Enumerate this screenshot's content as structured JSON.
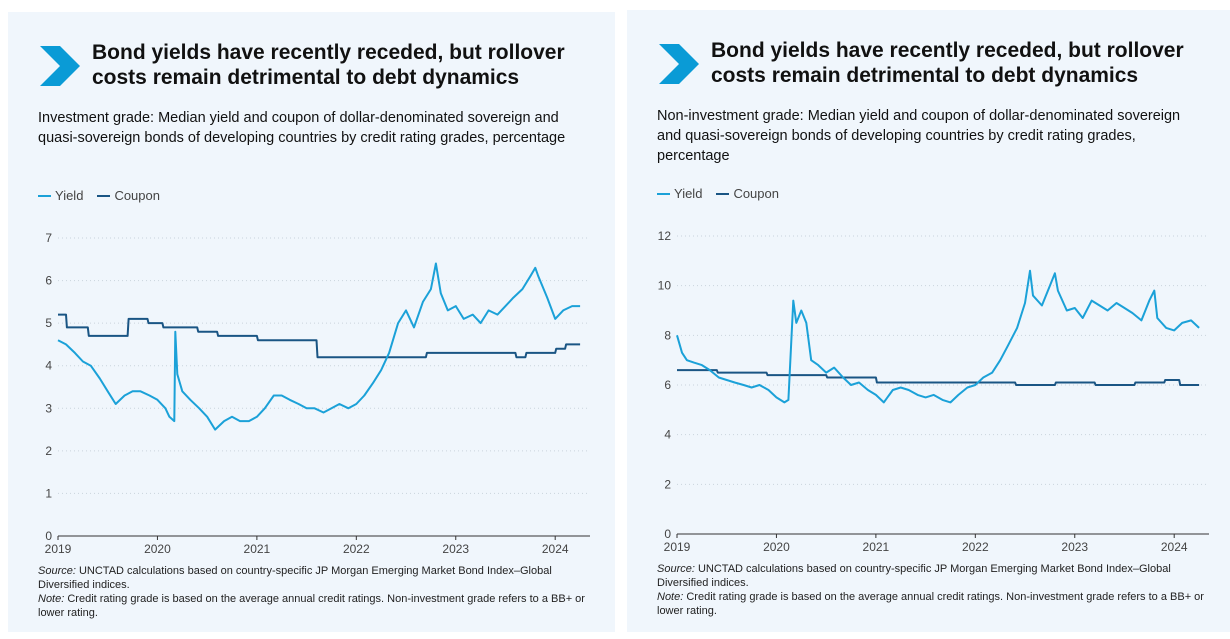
{
  "panels": [
    {
      "title": "Bond yields have recently receded, but rollover costs remain detrimental to debt dynamics",
      "subtitle": "Investment grade: Median yield and coupon of dollar-denominated sovereign and quasi-sovereign bonds of developing countries by credit rating grades, percentage",
      "legend": [
        "Yield",
        "Coupon"
      ],
      "source_label": "Source:",
      "source_text": " UNCTAD calculations based on country-specific JP Morgan Emerging Market Bond Index–Global Diversified indices.",
      "note_label": "Note:",
      "note_text": " Credit rating grade is based on the average annual credit ratings. Non-investment grade refers to a BB+ or lower rating."
    },
    {
      "title": "Bond yields have recently receded, but rollover costs remain detrimental to debt dynamics",
      "subtitle": "Non-investment grade: Median yield and coupon of dollar-denominated sovereign and quasi-sovereign bonds of developing countries by credit rating grades, percentage",
      "legend": [
        "Yield",
        "Coupon"
      ],
      "source_label": "Source:",
      "source_text": " UNCTAD calculations based on country-specific JP Morgan Emerging Market Bond Index–Global Diversified indices.",
      "note_label": "Note:",
      "note_text": " Credit rating grade is based on the average annual credit ratings. Non-investment grade refers to a BB+ or lower rating."
    }
  ],
  "colors": {
    "yield": "#1ba1d8",
    "coupon": "#1a5584",
    "accent": "#0a9bd6",
    "panel_bg": "#f0f6fc"
  },
  "chart_data": [
    {
      "type": "line",
      "title": "",
      "xlabel": "",
      "ylabel": "",
      "xlim": [
        2019.0,
        2024.35
      ],
      "ylim": [
        0,
        7
      ],
      "yticks": [
        0,
        1,
        2,
        3,
        4,
        5,
        6,
        7
      ],
      "xticks": [
        "2019",
        "2020",
        "2021",
        "2022",
        "2023",
        "2024"
      ],
      "grid": "horizontal",
      "legend_position": "top-left",
      "series": [
        {
          "name": "Yield",
          "x": [
            2019.0,
            2019.08,
            2019.17,
            2019.25,
            2019.33,
            2019.42,
            2019.5,
            2019.58,
            2019.67,
            2019.75,
            2019.83,
            2019.92,
            2020.0,
            2020.08,
            2020.12,
            2020.17,
            2020.18,
            2020.2,
            2020.25,
            2020.33,
            2020.42,
            2020.5,
            2020.58,
            2020.67,
            2020.75,
            2020.83,
            2020.92,
            2021.0,
            2021.08,
            2021.17,
            2021.25,
            2021.33,
            2021.42,
            2021.5,
            2021.58,
            2021.67,
            2021.75,
            2021.83,
            2021.92,
            2022.0,
            2022.08,
            2022.17,
            2022.25,
            2022.33,
            2022.42,
            2022.5,
            2022.58,
            2022.67,
            2022.75,
            2022.8,
            2022.85,
            2022.92,
            2023.0,
            2023.08,
            2023.17,
            2023.25,
            2023.33,
            2023.42,
            2023.5,
            2023.58,
            2023.67,
            2023.75,
            2023.8,
            2023.83,
            2023.92,
            2024.0,
            2024.08,
            2024.17,
            2024.25
          ],
          "values": [
            4.6,
            4.5,
            4.3,
            4.1,
            4.0,
            3.7,
            3.4,
            3.1,
            3.3,
            3.4,
            3.4,
            3.3,
            3.2,
            3.0,
            2.8,
            2.7,
            4.8,
            3.8,
            3.4,
            3.2,
            3.0,
            2.8,
            2.5,
            2.7,
            2.8,
            2.7,
            2.7,
            2.8,
            3.0,
            3.3,
            3.3,
            3.2,
            3.1,
            3.0,
            3.0,
            2.9,
            3.0,
            3.1,
            3.0,
            3.1,
            3.3,
            3.6,
            3.9,
            4.3,
            5.0,
            5.3,
            4.9,
            5.5,
            5.8,
            6.4,
            5.7,
            5.3,
            5.4,
            5.1,
            5.2,
            5.0,
            5.3,
            5.2,
            5.4,
            5.6,
            5.8,
            6.1,
            6.3,
            6.1,
            5.6,
            5.1,
            5.3,
            5.4,
            5.4
          ]
        },
        {
          "name": "Coupon",
          "x": [
            2019.0,
            2019.08,
            2019.09,
            2019.3,
            2019.31,
            2019.7,
            2019.71,
            2019.9,
            2019.91,
            2020.05,
            2020.06,
            2020.4,
            2020.41,
            2020.6,
            2020.61,
            2021.0,
            2021.01,
            2021.6,
            2021.61,
            2022.0,
            2022.01,
            2022.7,
            2022.71,
            2023.0,
            2023.01,
            2023.6,
            2023.61,
            2023.7,
            2023.71,
            2024.0,
            2024.01,
            2024.1,
            2024.11,
            2024.25
          ],
          "values": [
            5.2,
            5.2,
            4.9,
            4.9,
            4.7,
            4.7,
            5.1,
            5.1,
            5.0,
            5.0,
            4.9,
            4.9,
            4.8,
            4.8,
            4.7,
            4.7,
            4.6,
            4.6,
            4.2,
            4.2,
            4.2,
            4.2,
            4.3,
            4.3,
            4.3,
            4.3,
            4.2,
            4.2,
            4.3,
            4.3,
            4.4,
            4.4,
            4.5,
            4.5
          ]
        }
      ]
    },
    {
      "type": "line",
      "title": "",
      "xlabel": "",
      "ylabel": "",
      "xlim": [
        2019.0,
        2024.35
      ],
      "ylim": [
        0,
        12
      ],
      "yticks": [
        0,
        2,
        4,
        6,
        8,
        10,
        12
      ],
      "xticks": [
        "2019",
        "2020",
        "2021",
        "2022",
        "2023",
        "2024"
      ],
      "grid": "horizontal",
      "legend_position": "top-left",
      "series": [
        {
          "name": "Yield",
          "x": [
            2019.0,
            2019.05,
            2019.1,
            2019.17,
            2019.25,
            2019.33,
            2019.42,
            2019.5,
            2019.58,
            2019.67,
            2019.75,
            2019.83,
            2019.92,
            2020.0,
            2020.08,
            2020.12,
            2020.17,
            2020.2,
            2020.25,
            2020.3,
            2020.35,
            2020.42,
            2020.5,
            2020.58,
            2020.67,
            2020.75,
            2020.83,
            2020.92,
            2021.0,
            2021.08,
            2021.17,
            2021.25,
            2021.33,
            2021.42,
            2021.5,
            2021.58,
            2021.67,
            2021.75,
            2021.83,
            2021.92,
            2022.0,
            2022.08,
            2022.17,
            2022.25,
            2022.33,
            2022.42,
            2022.5,
            2022.55,
            2022.58,
            2022.67,
            2022.75,
            2022.8,
            2022.83,
            2022.92,
            2023.0,
            2023.08,
            2023.17,
            2023.25,
            2023.33,
            2023.42,
            2023.5,
            2023.58,
            2023.67,
            2023.75,
            2023.8,
            2023.83,
            2023.92,
            2024.0,
            2024.08,
            2024.17,
            2024.25
          ],
          "values": [
            8.0,
            7.3,
            7.0,
            6.9,
            6.8,
            6.6,
            6.3,
            6.2,
            6.1,
            6.0,
            5.9,
            6.0,
            5.8,
            5.5,
            5.3,
            5.4,
            9.4,
            8.5,
            9.0,
            8.5,
            7.0,
            6.8,
            6.5,
            6.7,
            6.3,
            6.0,
            6.1,
            5.8,
            5.6,
            5.3,
            5.8,
            5.9,
            5.8,
            5.6,
            5.5,
            5.6,
            5.4,
            5.3,
            5.6,
            5.9,
            6.0,
            6.3,
            6.5,
            7.0,
            7.6,
            8.3,
            9.3,
            10.6,
            9.6,
            9.2,
            10.0,
            10.5,
            9.8,
            9.0,
            9.1,
            8.7,
            9.4,
            9.2,
            9.0,
            9.3,
            9.1,
            8.9,
            8.6,
            9.4,
            9.8,
            8.7,
            8.3,
            8.2,
            8.5,
            8.6,
            8.3
          ]
        },
        {
          "name": "Coupon",
          "x": [
            2019.0,
            2019.4,
            2019.41,
            2019.9,
            2019.91,
            2020.5,
            2020.51,
            2021.0,
            2021.01,
            2022.0,
            2022.01,
            2022.4,
            2022.41,
            2022.8,
            2022.81,
            2023.2,
            2023.21,
            2023.6,
            2023.61,
            2023.9,
            2023.91,
            2024.05,
            2024.06,
            2024.25
          ],
          "values": [
            6.6,
            6.6,
            6.5,
            6.5,
            6.4,
            6.4,
            6.3,
            6.3,
            6.1,
            6.1,
            6.1,
            6.1,
            6.0,
            6.0,
            6.1,
            6.1,
            6.0,
            6.0,
            6.1,
            6.1,
            6.2,
            6.2,
            6.0,
            6.0
          ]
        }
      ]
    }
  ]
}
